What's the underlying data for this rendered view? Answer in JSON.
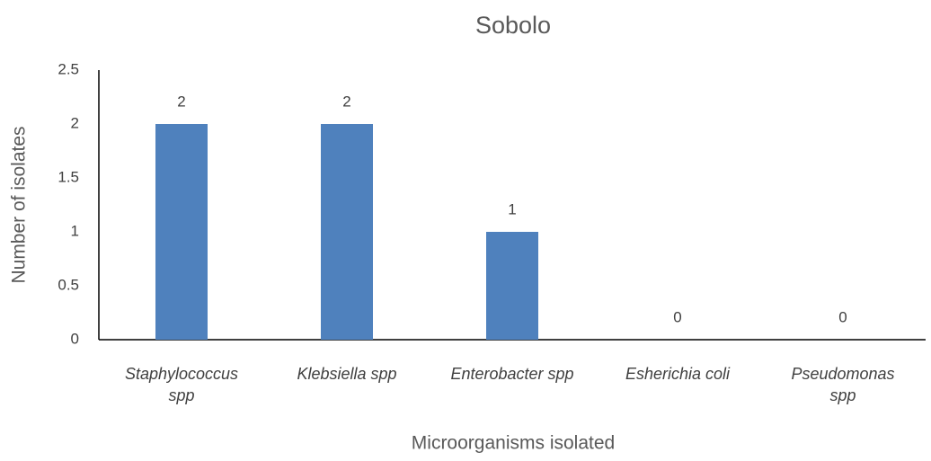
{
  "chart_data": {
    "type": "bar",
    "title": "Sobolo",
    "x_label": "Microorganisms isolated",
    "y_label": "Number of isolates",
    "categories": [
      "Staphylococcus spp",
      "Klebsiella spp",
      "Enterobacter spp",
      "Esherichia coli",
      "Pseudomonas spp"
    ],
    "values": [
      2,
      2,
      1,
      0,
      0
    ],
    "color": "#4f81bd",
    "ylim": [
      0,
      2.5
    ],
    "yticks": [
      0,
      0.5,
      1,
      1.5,
      2,
      2.5
    ],
    "grid": false
  }
}
